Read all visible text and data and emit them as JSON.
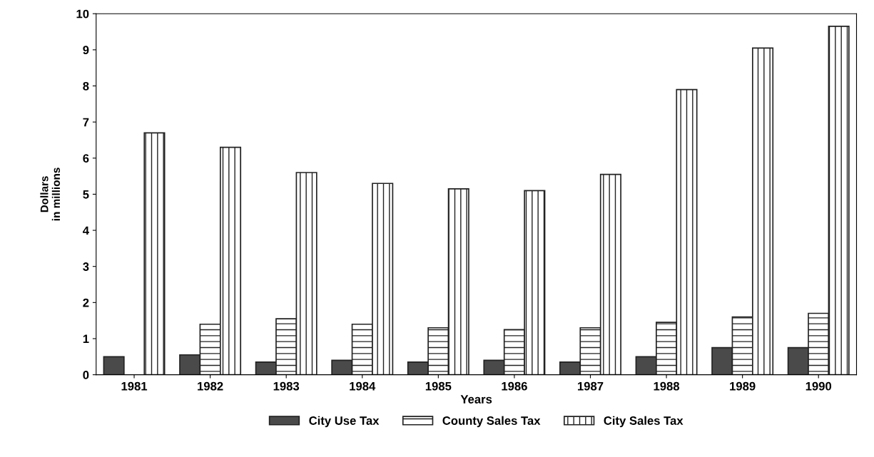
{
  "chart_data": {
    "type": "bar",
    "xlabel": "Years",
    "ylabel": "Dollars\nin millions",
    "categories": [
      "1981",
      "1982",
      "1983",
      "1984",
      "1985",
      "1986",
      "1987",
      "1988",
      "1989",
      "1990"
    ],
    "series": [
      {
        "name": "City Use Tax",
        "color": "#4a4a4a",
        "values": [
          0.5,
          0.55,
          0.35,
          0.4,
          0.35,
          0.4,
          0.35,
          0.5,
          0.75,
          0.75
        ]
      },
      {
        "name": "County Sales Tax",
        "color": "#222222",
        "values": [
          null,
          1.4,
          1.55,
          1.4,
          1.3,
          1.25,
          1.3,
          1.45,
          1.6,
          1.7
        ]
      },
      {
        "name": "City Sales Tax",
        "color": "#222222",
        "values": [
          6.7,
          6.3,
          5.6,
          5.3,
          5.15,
          5.1,
          5.55,
          7.9,
          9.05,
          9.65
        ]
      }
    ],
    "ylim": [
      0,
      10
    ],
    "yticks": [
      0,
      1,
      2,
      3,
      4,
      5,
      6,
      7,
      8,
      9,
      10
    ],
    "grid": false,
    "legend": "bottom"
  }
}
